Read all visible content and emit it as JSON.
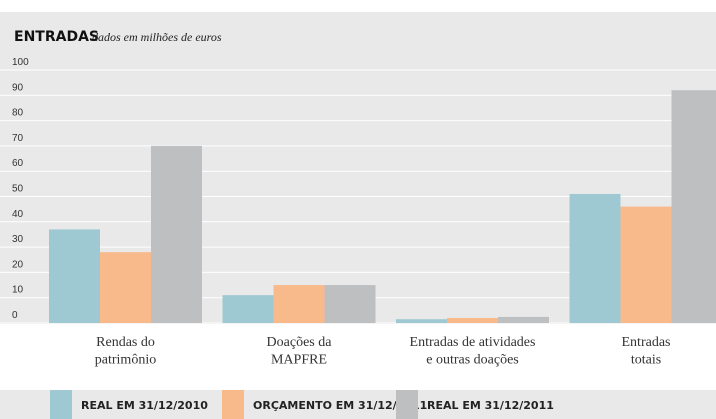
{
  "chart_data": {
    "type": "bar",
    "title": "ENTRADAS",
    "subtitle": "dados em milhões de euros",
    "categories": [
      "Rendas do\npatrimônio",
      "Doações da\nMAPFRE",
      "Entradas de atividades\ne outras doações",
      "Entradas\ntotais"
    ],
    "series": [
      {
        "name": "REAL EM 31/12/2010",
        "color": "#9ec9d2",
        "values": [
          37,
          11,
          1.5,
          51
        ]
      },
      {
        "name": "ORÇAMENTO EM 31/12/2011",
        "color": "#f9ba8b",
        "values": [
          28,
          15,
          2,
          46
        ]
      },
      {
        "name": "REAL EM 31/12/2011",
        "color": "#bdbfc1",
        "values": [
          70,
          15,
          2.4,
          92
        ]
      }
    ],
    "ylim": [
      0,
      100
    ],
    "yticks": [
      0,
      10,
      20,
      30,
      40,
      50,
      60,
      70,
      80,
      90,
      100
    ],
    "grid": true
  }
}
